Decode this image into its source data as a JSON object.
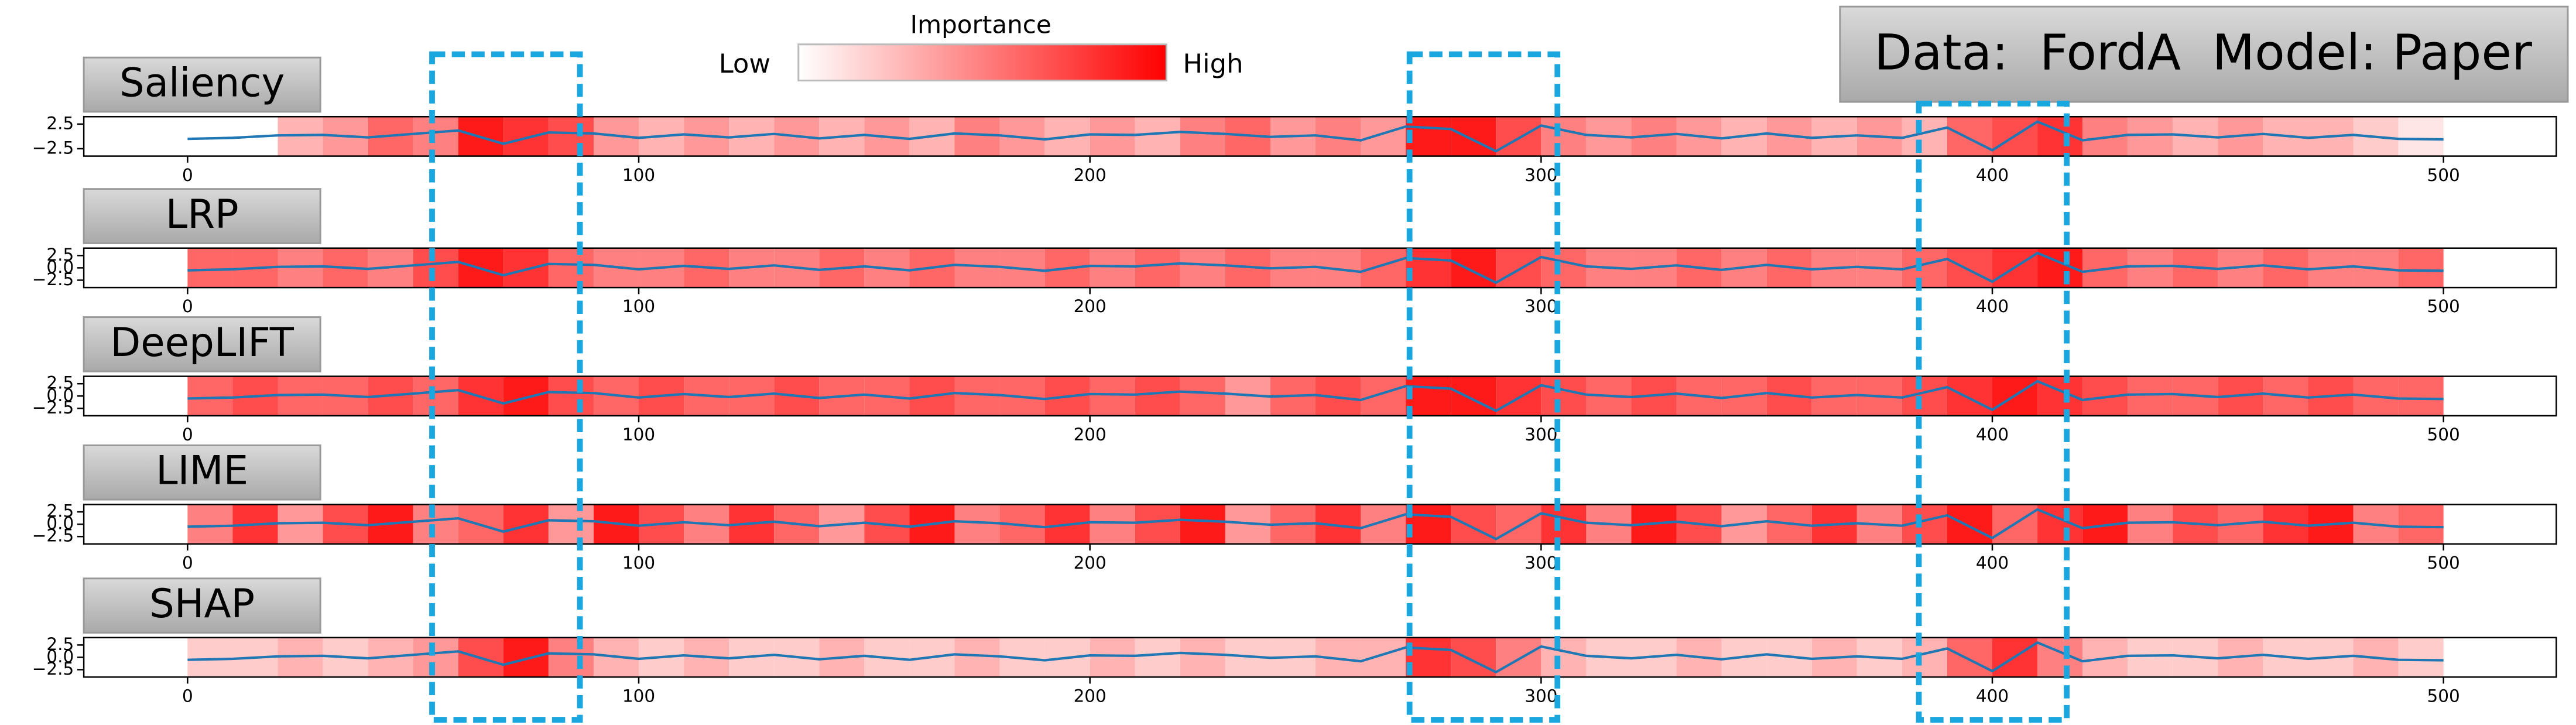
{
  "title": "Data:  FordA  Model: Paper",
  "colorbar": {
    "title": "Importance",
    "low_label": "Low",
    "high_label": "High",
    "color": "#ff0000"
  },
  "chart_data": [
    {
      "type": "heatmap",
      "title": "Saliency",
      "cmap_color": "#ff0000",
      "xlim": [
        -23,
        525
      ],
      "xticks": [
        0,
        100,
        200,
        300,
        400,
        500
      ],
      "ylim": [
        -4,
        4
      ],
      "yticks": [
        2.5,
        {
          "value": -2.5,
          "label": "−2.5"
        }
      ],
      "bins": [
        0,
        10,
        20,
        30,
        40,
        50,
        60,
        70,
        80,
        90,
        100,
        110,
        120,
        130,
        140,
        150,
        160,
        170,
        180,
        190,
        200,
        210,
        220,
        230,
        240,
        250,
        260,
        270,
        280,
        290,
        300,
        310,
        320,
        330,
        340,
        350,
        360,
        370,
        380,
        390,
        400,
        410,
        420,
        430,
        440,
        450,
        460,
        470,
        480,
        490,
        500
      ],
      "importance": [
        0,
        0,
        0.3,
        0.4,
        0.6,
        0.5,
        0.9,
        0.8,
        0.7,
        0.4,
        0.3,
        0.4,
        0.3,
        0.4,
        0.3,
        0.4,
        0.3,
        0.5,
        0.4,
        0.3,
        0.4,
        0.3,
        0.5,
        0.6,
        0.4,
        0.5,
        0.4,
        0.9,
        0.9,
        0.7,
        0.5,
        0.4,
        0.5,
        0.4,
        0.3,
        0.4,
        0.3,
        0.4,
        0.3,
        0.6,
        0.7,
        0.8,
        0.5,
        0.4,
        0.3,
        0.4,
        0.3,
        0.3,
        0.2,
        0.1
      ],
      "series": [
        {
          "color": "#1f77b4",
          "x": [
            0,
            10,
            20,
            30,
            40,
            50,
            60,
            70,
            80,
            90,
            100,
            110,
            120,
            130,
            140,
            150,
            160,
            170,
            180,
            190,
            200,
            210,
            220,
            230,
            240,
            250,
            260,
            270,
            280,
            290,
            300,
            310,
            320,
            330,
            340,
            350,
            360,
            370,
            380,
            390,
            400,
            410,
            420,
            430,
            440,
            450,
            460,
            470,
            480,
            490,
            500
          ],
          "values": [
            -0.5,
            -0.3,
            0.2,
            0.3,
            -0.2,
            0.5,
            1.2,
            -1.5,
            0.8,
            0.6,
            -0.3,
            0.4,
            -0.2,
            0.5,
            -0.4,
            0.3,
            -0.5,
            0.6,
            0.2,
            -0.6,
            0.4,
            0.3,
            0.9,
            0.5,
            -0.1,
            0.2,
            -0.8,
            2.0,
            1.5,
            -3.0,
            2.2,
            0.3,
            -0.2,
            0.5,
            -0.4,
            0.6,
            -0.3,
            0.2,
            -0.3,
            1.8,
            -2.8,
            3.0,
            -0.8,
            0.3,
            0.4,
            -0.2,
            0.5,
            -0.3,
            0.3,
            -0.5,
            -0.6
          ]
        }
      ]
    },
    {
      "type": "heatmap",
      "title": "LRP",
      "cmap_color": "#ff0000",
      "xlim": [
        -23,
        525
      ],
      "xticks": [
        0,
        100,
        200,
        300,
        400,
        500
      ],
      "ylim": [
        -4,
        4
      ],
      "yticks": [
        2.5,
        {
          "value": 0,
          "label": "0.0"
        },
        {
          "value": -2.5,
          "label": "−2.5"
        }
      ],
      "bins": [
        0,
        10,
        20,
        30,
        40,
        50,
        60,
        70,
        80,
        90,
        100,
        110,
        120,
        130,
        140,
        150,
        160,
        170,
        180,
        190,
        200,
        210,
        220,
        230,
        240,
        250,
        260,
        270,
        280,
        290,
        300,
        310,
        320,
        330,
        340,
        350,
        360,
        370,
        380,
        390,
        400,
        410,
        420,
        430,
        440,
        450,
        460,
        470,
        480,
        490,
        500
      ],
      "importance": [
        0.6,
        0.6,
        0.5,
        0.6,
        0.5,
        0.7,
        0.9,
        0.8,
        0.6,
        0.5,
        0.5,
        0.6,
        0.5,
        0.5,
        0.6,
        0.5,
        0.6,
        0.5,
        0.5,
        0.6,
        0.5,
        0.6,
        0.5,
        0.6,
        0.5,
        0.5,
        0.6,
        0.8,
        0.9,
        0.7,
        0.6,
        0.5,
        0.5,
        0.6,
        0.5,
        0.6,
        0.5,
        0.5,
        0.6,
        0.7,
        0.8,
        0.9,
        0.6,
        0.5,
        0.6,
        0.5,
        0.6,
        0.5,
        0.5,
        0.6
      ],
      "series": [
        {
          "color": "#1f77b4",
          "x": [
            0,
            10,
            20,
            30,
            40,
            50,
            60,
            70,
            80,
            90,
            100,
            110,
            120,
            130,
            140,
            150,
            160,
            170,
            180,
            190,
            200,
            210,
            220,
            230,
            240,
            250,
            260,
            270,
            280,
            290,
            300,
            310,
            320,
            330,
            340,
            350,
            360,
            370,
            380,
            390,
            400,
            410,
            420,
            430,
            440,
            450,
            460,
            470,
            480,
            490,
            500
          ],
          "values": [
            -0.5,
            -0.3,
            0.2,
            0.3,
            -0.2,
            0.5,
            1.2,
            -1.5,
            0.8,
            0.6,
            -0.3,
            0.4,
            -0.2,
            0.5,
            -0.4,
            0.3,
            -0.5,
            0.6,
            0.2,
            -0.6,
            0.4,
            0.3,
            0.9,
            0.5,
            -0.1,
            0.2,
            -0.8,
            2.0,
            1.5,
            -3.0,
            2.2,
            0.3,
            -0.2,
            0.5,
            -0.4,
            0.6,
            -0.3,
            0.2,
            -0.3,
            1.8,
            -2.8,
            3.0,
            -0.8,
            0.3,
            0.4,
            -0.2,
            0.5,
            -0.3,
            0.3,
            -0.5,
            -0.6
          ]
        }
      ]
    },
    {
      "type": "heatmap",
      "title": "DeepLIFT",
      "cmap_color": "#ff0000",
      "xlim": [
        -23,
        525
      ],
      "xticks": [
        0,
        100,
        200,
        300,
        400,
        500
      ],
      "ylim": [
        -4,
        4
      ],
      "yticks": [
        2.5,
        {
          "value": 0,
          "label": "0.0"
        },
        {
          "value": -2.5,
          "label": "−2.5"
        }
      ],
      "bins": [
        0,
        10,
        20,
        30,
        40,
        50,
        60,
        70,
        80,
        90,
        100,
        110,
        120,
        130,
        140,
        150,
        160,
        170,
        180,
        190,
        200,
        210,
        220,
        230,
        240,
        250,
        260,
        270,
        280,
        290,
        300,
        310,
        320,
        330,
        340,
        350,
        360,
        370,
        380,
        390,
        400,
        410,
        420,
        430,
        440,
        450,
        460,
        470,
        480,
        490,
        500
      ],
      "importance": [
        0.6,
        0.7,
        0.6,
        0.6,
        0.7,
        0.6,
        0.8,
        0.9,
        0.7,
        0.6,
        0.7,
        0.6,
        0.6,
        0.7,
        0.6,
        0.6,
        0.7,
        0.6,
        0.6,
        0.7,
        0.6,
        0.7,
        0.6,
        0.4,
        0.6,
        0.7,
        0.6,
        0.9,
        0.9,
        0.8,
        0.7,
        0.6,
        0.7,
        0.6,
        0.6,
        0.7,
        0.6,
        0.6,
        0.7,
        0.8,
        0.9,
        0.8,
        0.7,
        0.6,
        0.6,
        0.7,
        0.6,
        0.7,
        0.6,
        0.6
      ],
      "series": [
        {
          "color": "#1f77b4",
          "x": [
            0,
            10,
            20,
            30,
            40,
            50,
            60,
            70,
            80,
            90,
            100,
            110,
            120,
            130,
            140,
            150,
            160,
            170,
            180,
            190,
            200,
            210,
            220,
            230,
            240,
            250,
            260,
            270,
            280,
            290,
            300,
            310,
            320,
            330,
            340,
            350,
            360,
            370,
            380,
            390,
            400,
            410,
            420,
            430,
            440,
            450,
            460,
            470,
            480,
            490,
            500
          ],
          "values": [
            -0.5,
            -0.3,
            0.2,
            0.3,
            -0.2,
            0.5,
            1.2,
            -1.5,
            0.8,
            0.6,
            -0.3,
            0.4,
            -0.2,
            0.5,
            -0.4,
            0.3,
            -0.5,
            0.6,
            0.2,
            -0.6,
            0.4,
            0.3,
            0.9,
            0.5,
            -0.1,
            0.2,
            -0.8,
            2.0,
            1.5,
            -3.0,
            2.2,
            0.3,
            -0.2,
            0.5,
            -0.4,
            0.6,
            -0.3,
            0.2,
            -0.3,
            1.8,
            -2.8,
            3.0,
            -0.8,
            0.3,
            0.4,
            -0.2,
            0.5,
            -0.3,
            0.3,
            -0.5,
            -0.6
          ]
        }
      ]
    },
    {
      "type": "heatmap",
      "title": "LIME",
      "cmap_color": "#ff0000",
      "xlim": [
        -23,
        525
      ],
      "xticks": [
        0,
        100,
        200,
        300,
        400,
        500
      ],
      "ylim": [
        -4,
        4
      ],
      "yticks": [
        2.5,
        {
          "value": 0,
          "label": "0.0"
        },
        {
          "value": -2.5,
          "label": "−2.5"
        }
      ],
      "bins": [
        0,
        10,
        20,
        30,
        40,
        50,
        60,
        70,
        80,
        90,
        100,
        110,
        120,
        130,
        140,
        150,
        160,
        170,
        180,
        190,
        200,
        210,
        220,
        230,
        240,
        250,
        260,
        270,
        280,
        290,
        300,
        310,
        320,
        330,
        340,
        350,
        360,
        370,
        380,
        390,
        400,
        410,
        420,
        430,
        440,
        450,
        460,
        470,
        480,
        490,
        500
      ],
      "importance": [
        0.5,
        0.8,
        0.4,
        0.7,
        0.9,
        0.5,
        0.6,
        0.8,
        0.4,
        0.9,
        0.7,
        0.5,
        0.8,
        0.6,
        0.4,
        0.7,
        0.9,
        0.5,
        0.6,
        0.8,
        0.5,
        0.7,
        0.9,
        0.4,
        0.6,
        0.8,
        0.5,
        0.9,
        0.7,
        0.6,
        0.8,
        0.5,
        0.9,
        0.7,
        0.4,
        0.6,
        0.8,
        0.5,
        0.7,
        0.9,
        0.6,
        0.8,
        0.9,
        0.5,
        0.7,
        0.6,
        0.8,
        0.9,
        0.5,
        0.6
      ],
      "series": [
        {
          "color": "#1f77b4",
          "x": [
            0,
            10,
            20,
            30,
            40,
            50,
            60,
            70,
            80,
            90,
            100,
            110,
            120,
            130,
            140,
            150,
            160,
            170,
            180,
            190,
            200,
            210,
            220,
            230,
            240,
            250,
            260,
            270,
            280,
            290,
            300,
            310,
            320,
            330,
            340,
            350,
            360,
            370,
            380,
            390,
            400,
            410,
            420,
            430,
            440,
            450,
            460,
            470,
            480,
            490,
            500
          ],
          "values": [
            -0.5,
            -0.3,
            0.2,
            0.3,
            -0.2,
            0.5,
            1.2,
            -1.5,
            0.8,
            0.6,
            -0.3,
            0.4,
            -0.2,
            0.5,
            -0.4,
            0.3,
            -0.5,
            0.6,
            0.2,
            -0.6,
            0.4,
            0.3,
            0.9,
            0.5,
            -0.1,
            0.2,
            -0.8,
            2.0,
            1.5,
            -3.0,
            2.2,
            0.3,
            -0.2,
            0.5,
            -0.4,
            0.6,
            -0.3,
            0.2,
            -0.3,
            1.8,
            -2.8,
            3.0,
            -0.8,
            0.3,
            0.4,
            -0.2,
            0.5,
            -0.3,
            0.3,
            -0.5,
            -0.6
          ]
        }
      ]
    },
    {
      "type": "heatmap",
      "title": "SHAP",
      "cmap_color": "#ff0000",
      "xlim": [
        -23,
        525
      ],
      "xticks": [
        0,
        100,
        200,
        300,
        400,
        500
      ],
      "ylim": [
        -4,
        4
      ],
      "yticks": [
        2.5,
        {
          "value": 0,
          "label": "0.0"
        },
        {
          "value": -2.5,
          "label": "−2.5"
        }
      ],
      "bins": [
        0,
        10,
        20,
        30,
        40,
        50,
        60,
        70,
        80,
        90,
        100,
        110,
        120,
        130,
        140,
        150,
        160,
        170,
        180,
        190,
        200,
        210,
        220,
        230,
        240,
        250,
        260,
        270,
        280,
        290,
        300,
        310,
        320,
        330,
        340,
        350,
        360,
        370,
        380,
        390,
        400,
        410,
        420,
        430,
        440,
        450,
        460,
        470,
        480,
        490,
        500
      ],
      "importance": [
        0.2,
        0.2,
        0.3,
        0.2,
        0.3,
        0.4,
        0.7,
        0.9,
        0.5,
        0.3,
        0.2,
        0.3,
        0.2,
        0.2,
        0.3,
        0.2,
        0.2,
        0.3,
        0.2,
        0.2,
        0.3,
        0.2,
        0.3,
        0.2,
        0.2,
        0.3,
        0.3,
        0.8,
        0.7,
        0.5,
        0.3,
        0.2,
        0.2,
        0.3,
        0.2,
        0.2,
        0.3,
        0.2,
        0.3,
        0.6,
        0.8,
        0.5,
        0.3,
        0.2,
        0.2,
        0.3,
        0.2,
        0.2,
        0.3,
        0.2
      ],
      "series": [
        {
          "color": "#1f77b4",
          "x": [
            0,
            10,
            20,
            30,
            40,
            50,
            60,
            70,
            80,
            90,
            100,
            110,
            120,
            130,
            140,
            150,
            160,
            170,
            180,
            190,
            200,
            210,
            220,
            230,
            240,
            250,
            260,
            270,
            280,
            290,
            300,
            310,
            320,
            330,
            340,
            350,
            360,
            370,
            380,
            390,
            400,
            410,
            420,
            430,
            440,
            450,
            460,
            470,
            480,
            490,
            500
          ],
          "values": [
            -0.5,
            -0.3,
            0.2,
            0.3,
            -0.2,
            0.5,
            1.2,
            -1.5,
            0.8,
            0.6,
            -0.3,
            0.4,
            -0.2,
            0.5,
            -0.4,
            0.3,
            -0.5,
            0.6,
            0.2,
            -0.6,
            0.4,
            0.3,
            0.9,
            0.5,
            -0.1,
            0.2,
            -0.8,
            2.0,
            1.5,
            -3.0,
            2.2,
            0.3,
            -0.2,
            0.5,
            -0.4,
            0.6,
            -0.3,
            0.2,
            -0.3,
            1.8,
            -2.8,
            3.0,
            -0.8,
            0.3,
            0.4,
            -0.2,
            0.5,
            -0.3,
            0.3,
            -0.5,
            -0.6
          ]
        }
      ]
    }
  ]
}
